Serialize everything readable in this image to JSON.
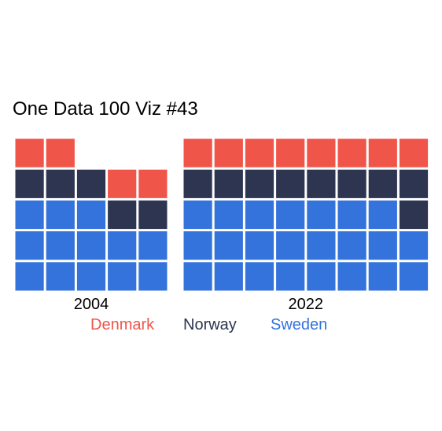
{
  "chart_data": {
    "type": "waffle",
    "title": "One Data 100 Viz #43",
    "panels": [
      {
        "label": "2004",
        "columns": 5,
        "counts": {
          "Sweden": 13,
          "Norway": 5,
          "Denmark": 4
        }
      },
      {
        "label": "2022",
        "columns": 8,
        "counts": {
          "Sweden": 23,
          "Norway": 9,
          "Denmark": 8
        }
      }
    ],
    "series_order": [
      "Sweden",
      "Norway",
      "Denmark"
    ],
    "legend": [
      {
        "name": "Denmark",
        "color": "#f0554a"
      },
      {
        "name": "Norway",
        "color": "#2d3551"
      },
      {
        "name": "Sweden",
        "color": "#3473dc"
      }
    ]
  }
}
